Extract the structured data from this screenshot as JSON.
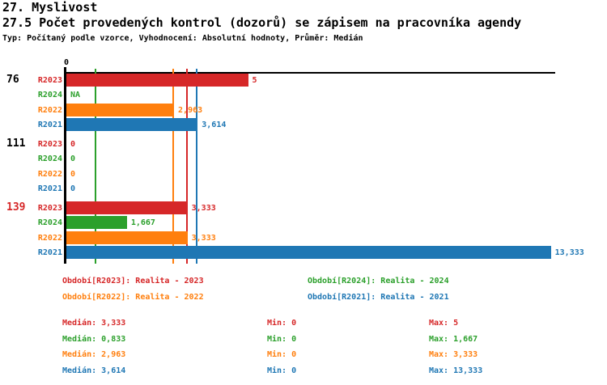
{
  "header": {
    "title": "27. Myslivost",
    "subtitle": "27.5 Počet provedených kontrol (dozorů) se zápisem na pracovníka agendy",
    "meta": "Typ: Počítaný podle vzorce, Vyhodnocení: Absolutní hodnoty, Průměr: Medián"
  },
  "colors": {
    "R2023": "#d62728",
    "R2024": "#2ca02c",
    "R2022": "#ff7f0e",
    "R2021": "#1f77b4",
    "axis": "#000000",
    "highlighted_group_label": "#d62728",
    "normal_group_label": "#000000"
  },
  "chart_data": {
    "type": "bar",
    "orientation": "horizontal",
    "title": "27.5 Počet provedených kontrol (dozorů) se zápisem na pracovníka agendy",
    "subtitle": "Typ: Počítaný podle vzorce, Vyhodnocení: Absolutní hodnoty, Průměr: Medián",
    "x_tick_labels": [
      "0"
    ],
    "xlim": [
      0,
      13.5
    ],
    "grid": false,
    "series_order": [
      "R2023",
      "R2024",
      "R2022",
      "R2021"
    ],
    "groups": [
      {
        "label": "76",
        "highlighted": false,
        "bars": [
          {
            "series": "R2023",
            "value": 5,
            "label": "5"
          },
          {
            "series": "R2024",
            "value": null,
            "label": "NA"
          },
          {
            "series": "R2022",
            "value": 2.963,
            "label": "2,963"
          },
          {
            "series": "R2021",
            "value": 3.614,
            "label": "3,614"
          }
        ]
      },
      {
        "label": "111",
        "highlighted": false,
        "bars": [
          {
            "series": "R2023",
            "value": 0,
            "label": "0"
          },
          {
            "series": "R2024",
            "value": 0,
            "label": "0"
          },
          {
            "series": "R2022",
            "value": 0,
            "label": "0"
          },
          {
            "series": "R2021",
            "value": 0,
            "label": "0"
          }
        ]
      },
      {
        "label": "139",
        "highlighted": true,
        "bars": [
          {
            "series": "R2023",
            "value": 3.333,
            "label": "3,333"
          },
          {
            "series": "R2024",
            "value": 1.667,
            "label": "1,667"
          },
          {
            "series": "R2022",
            "value": 3.333,
            "label": "3,333"
          },
          {
            "series": "R2021",
            "value": 13.333,
            "label": "13,333"
          }
        ]
      }
    ],
    "median_lines": [
      {
        "series": "R2023",
        "value": 3.333
      },
      {
        "series": "R2024",
        "value": 0.833
      },
      {
        "series": "R2022",
        "value": 2.963
      },
      {
        "series": "R2021",
        "value": 3.614
      }
    ]
  },
  "legend": {
    "items": [
      {
        "series": "R2023",
        "label": "Období[R2023]: Realita - 2023"
      },
      {
        "series": "R2024",
        "label": "Období[R2024]: Realita - 2024"
      },
      {
        "series": "R2022",
        "label": "Období[R2022]: Realita - 2022"
      },
      {
        "series": "R2021",
        "label": "Období[R2021]: Realita - 2021"
      }
    ]
  },
  "stats": {
    "labels": {
      "median": "Medián",
      "min": "Min",
      "max": "Max"
    },
    "rows": [
      {
        "series": "R2023",
        "median": "3,333",
        "min": "0",
        "max": "5"
      },
      {
        "series": "R2024",
        "median": "0,833",
        "min": "0",
        "max": "1,667"
      },
      {
        "series": "R2022",
        "median": "2,963",
        "min": "0",
        "max": "3,333"
      },
      {
        "series": "R2021",
        "median": "3,614",
        "min": "0",
        "max": "13,333"
      }
    ]
  }
}
